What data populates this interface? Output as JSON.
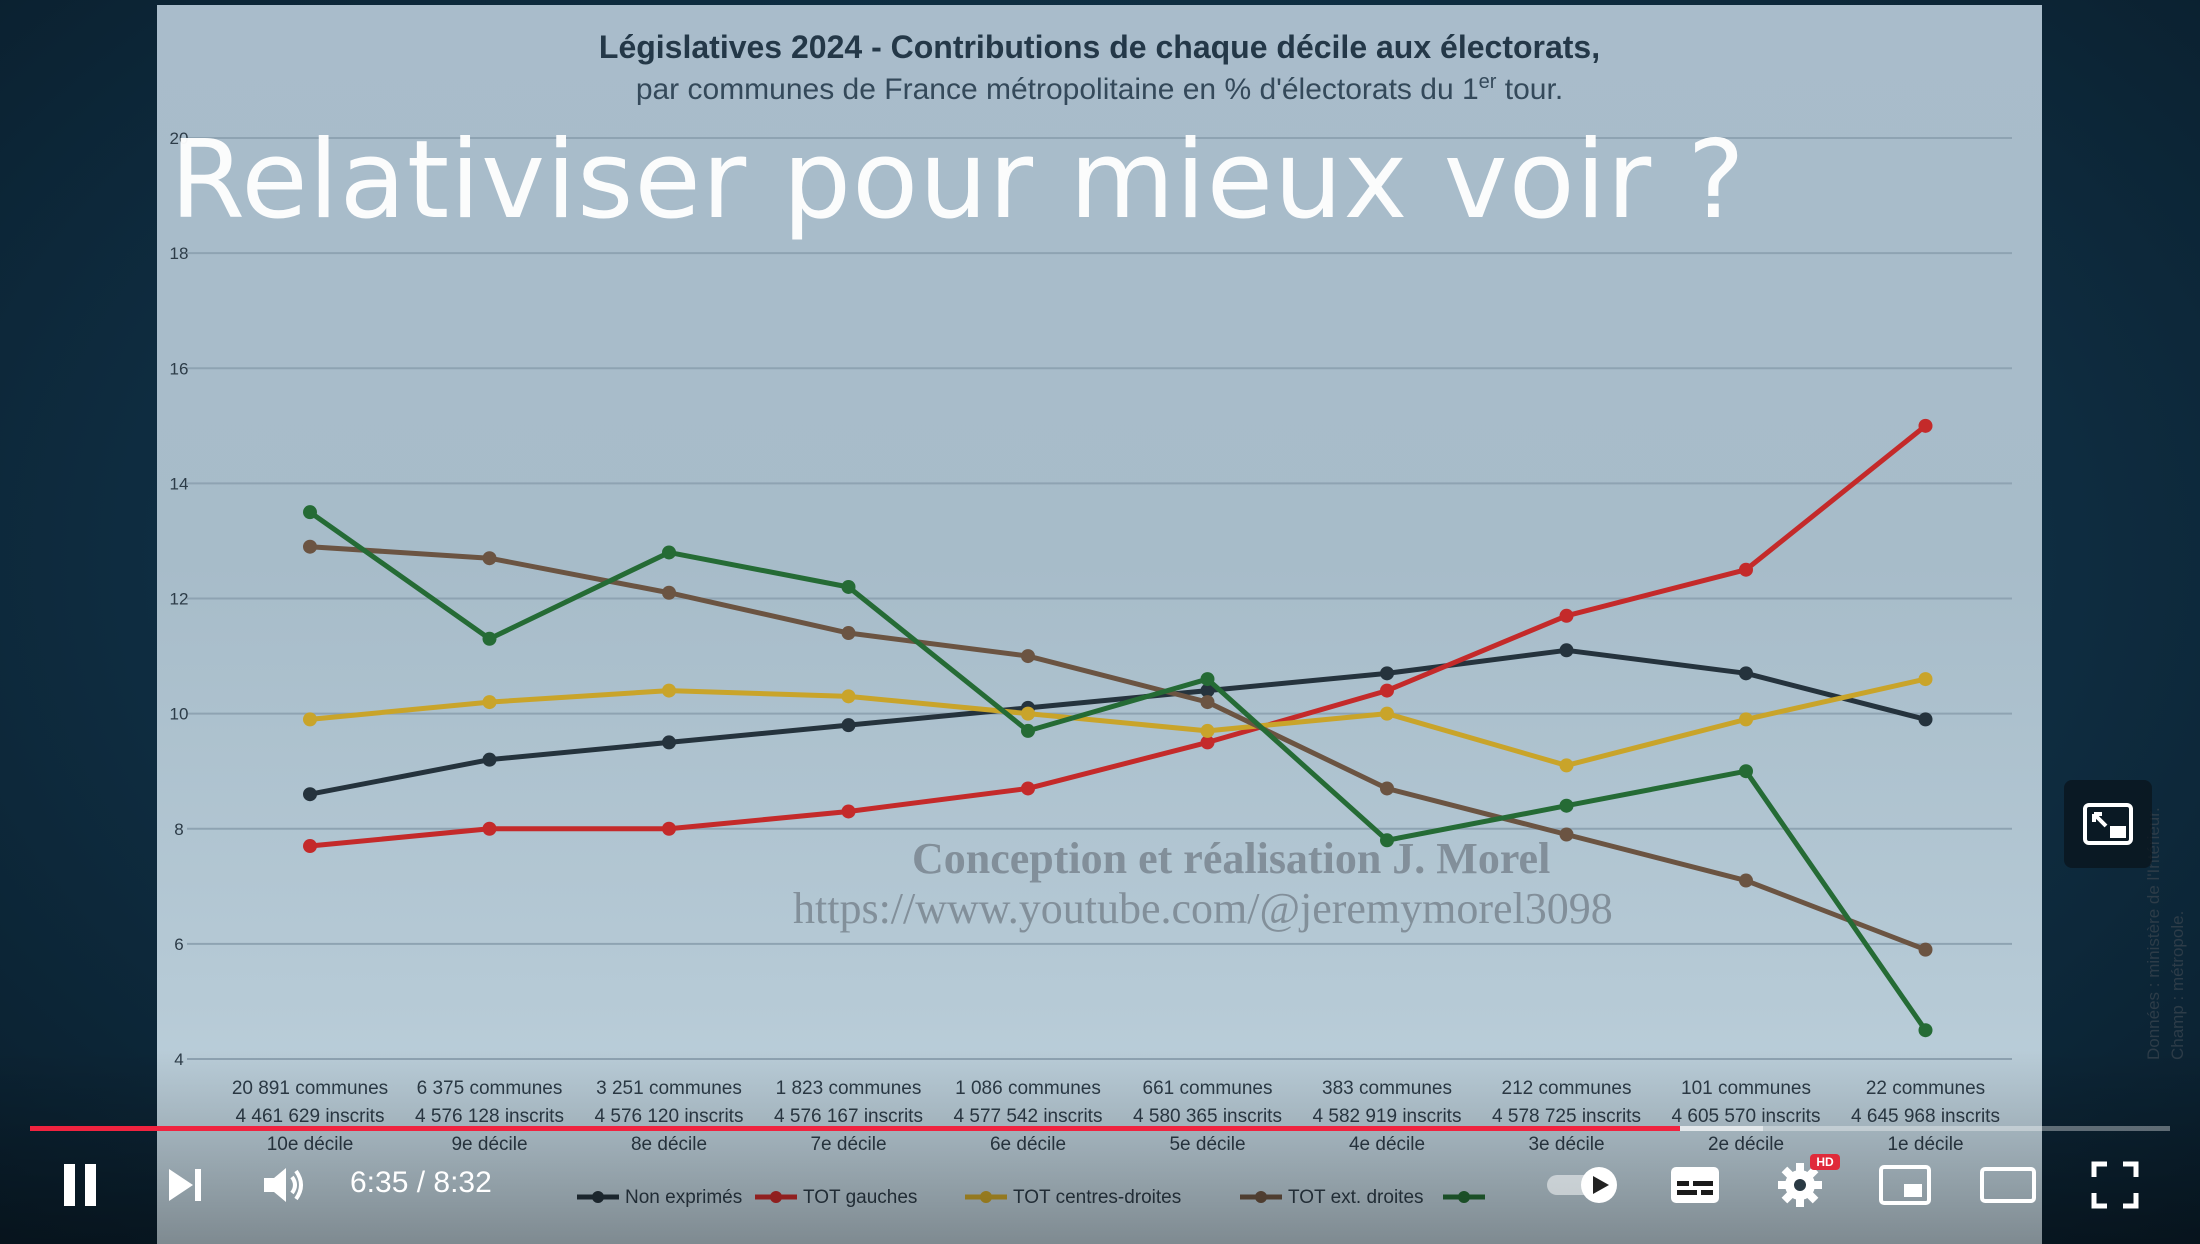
{
  "video": {
    "overlay_title": "Relativiser pour mieux voir ?",
    "current_time": "6:35",
    "duration": "8:32",
    "time_display": "6:35 / 8:32",
    "progress_fraction": 0.771,
    "buffered_fraction": 0.81,
    "hd_badge": "HD",
    "accent_color": "#f0233f"
  },
  "slide": {
    "title_line1": "Législatives 2024 - Contributions de chaque décile aux électorats,",
    "title_line2": "par communes de France métropolitaine en % d'électorats du 1er tour.",
    "credit_line1": "Conception et réalisation J. Morel",
    "credit_line2": "https://www.youtube.com/@jeremymorel3098",
    "source_line1": "Données : ministère de l'Intérieur.",
    "source_line2": "Champ : métropole."
  },
  "controls": {
    "play_pause": "pause-icon",
    "next": "next-icon",
    "volume": "volume-icon",
    "autoplay": "autoplay-toggle-icon",
    "subtitles": "subtitles-icon",
    "settings": "gear-icon",
    "miniplayer": "miniplayer-icon",
    "theater": "theater-mode-icon",
    "fullscreen": "fullscreen-icon",
    "pip_corner": "pip-expand-icon"
  },
  "chart_data": {
    "type": "line",
    "title": "Législatives 2024 - Contributions de chaque décile aux électorats,",
    "subtitle": "par communes de France métropolitaine en % d'électorats du 1er tour.",
    "ylim": [
      4,
      20
    ],
    "yticks": [
      4,
      6,
      8,
      10,
      12,
      14,
      16,
      18,
      20
    ],
    "grid": true,
    "legend_position": "bottom",
    "categories": [
      {
        "communes": "20 891 communes",
        "inscrits": "4 461 629 inscrits",
        "decile": "10e décile"
      },
      {
        "communes": "6 375 communes",
        "inscrits": "4 576 128 inscrits",
        "decile": "9e décile"
      },
      {
        "communes": "3 251 communes",
        "inscrits": "4 576 120 inscrits",
        "decile": "8e décile"
      },
      {
        "communes": "1 823 communes",
        "inscrits": "4 576 167 inscrits",
        "decile": "7e décile"
      },
      {
        "communes": "1 086 communes",
        "inscrits": "4 577 542 inscrits",
        "decile": "6e décile"
      },
      {
        "communes": "661 communes",
        "inscrits": "4 580 365 inscrits",
        "decile": "5e décile"
      },
      {
        "communes": "383 communes",
        "inscrits": "4 582 919 inscrits",
        "decile": "4e décile"
      },
      {
        "communes": "212 communes",
        "inscrits": "4 578 725 inscrits",
        "decile": "3e décile"
      },
      {
        "communes": "101 communes",
        "inscrits": "4 605 570 inscrits",
        "decile": "2e décile"
      },
      {
        "communes": "22 communes",
        "inscrits": "4 645 968 inscrits",
        "decile": "1e décile"
      }
    ],
    "series": [
      {
        "name": "Non exprimés",
        "color": "#25333d",
        "values": [
          8.6,
          9.2,
          9.5,
          9.8,
          10.1,
          10.4,
          10.7,
          11.1,
          10.7,
          9.9
        ]
      },
      {
        "name": "TOT gauches",
        "color": "#c42a2a",
        "values": [
          7.7,
          8.0,
          8.0,
          8.3,
          8.7,
          9.5,
          10.4,
          11.7,
          12.5,
          15.0
        ]
      },
      {
        "name": "TOT centres-droites",
        "color": "#c9a42a",
        "values": [
          9.9,
          10.2,
          10.4,
          10.3,
          10.0,
          9.7,
          10.0,
          9.1,
          9.9,
          10.6
        ]
      },
      {
        "name": "TOT ext. droites",
        "color": "#6b5442",
        "values": [
          12.9,
          12.7,
          12.1,
          11.4,
          11.0,
          10.2,
          8.7,
          7.9,
          7.1,
          5.9
        ]
      },
      {
        "name": "",
        "color": "#256b35",
        "values": [
          13.5,
          11.3,
          12.8,
          12.2,
          9.7,
          10.6,
          7.8,
          8.4,
          9.0,
          4.5
        ]
      }
    ]
  }
}
